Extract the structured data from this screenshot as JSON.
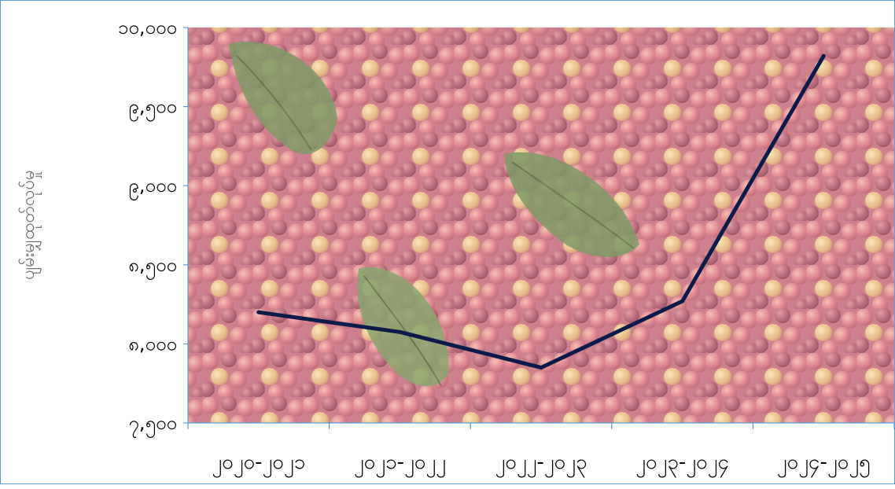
{
  "chart_data": {
    "type": "line",
    "ylabel": "ပျမ်းမျှထုတ်လုပ်မှု",
    "xlabel": "",
    "categories": [
      "၂၀၂၀-၂၀၂၁",
      "၂၀၂၁-၂၀၂၂",
      "၂၀၂၂-၂၀၂၃",
      "၂၀၂၃-၂၀၂၄",
      "၂၀၂၄-၂၀၂၅"
    ],
    "series": [
      {
        "values": [
          8200,
          8075,
          7850,
          8270,
          9820
        ]
      }
    ],
    "ylim": [
      7500,
      10000
    ],
    "yticks": [
      7500,
      8000,
      8500,
      9000,
      9500,
      10000
    ],
    "ytick_labels": [
      "၇,၅၀၀",
      "၈,၀၀၀",
      "၈,၅၀၀",
      "၉,၀၀၀",
      "၉,၅၀၀",
      "၁၀,၀၀၀"
    ],
    "line_color": "#0d1b4a",
    "axis_color": "#5b9bd5",
    "tick_label_color": "#000000",
    "ylabel_color": "#666666",
    "background_image": "coffee-cherries-photo",
    "grid": false,
    "legend": "none"
  }
}
